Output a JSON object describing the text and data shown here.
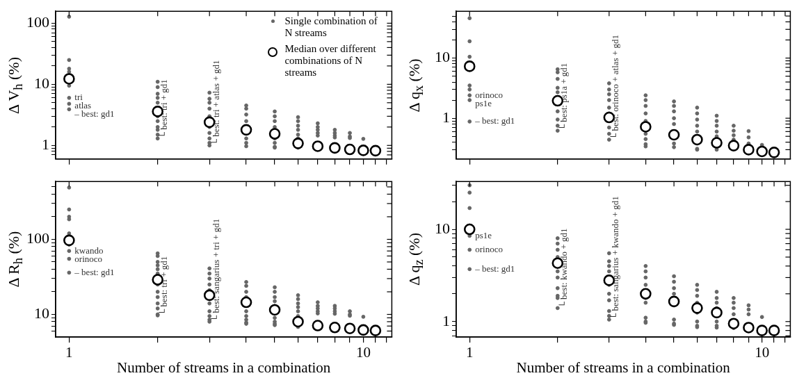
{
  "chart_data": [
    {
      "type": "scatter",
      "ylabel": "Δ V$_{h}$ (%)",
      "log": "xy",
      "grid": false,
      "marker": "circle",
      "legend": "top right",
      "tick_labels": "y",
      "x": [
        1,
        2,
        3,
        4,
        5,
        6,
        7,
        8,
        9,
        10,
        11
      ],
      "xlim": [
        0.9,
        12.5
      ],
      "xticks": [
        {
          "value": 1,
          "label": null
        },
        {
          "value": 2,
          "label": null
        },
        {
          "value": 3,
          "label": null
        },
        {
          "value": 4,
          "label": null
        },
        {
          "value": 5,
          "label": null
        },
        {
          "value": 6,
          "label": null
        },
        {
          "value": 7,
          "label": null
        },
        {
          "value": 8,
          "label": null
        },
        {
          "value": 9,
          "label": null
        },
        {
          "value": 10,
          "label": null
        },
        {
          "value": 11,
          "label": null
        },
        {
          "value": 12,
          "label": null
        }
      ],
      "ylim": [
        0.64,
        157
      ],
      "yticks": [
        {
          "value": 0.7,
          "label": null
        },
        {
          "value": 0.8,
          "label": null
        },
        {
          "value": 0.9,
          "label": null
        },
        1,
        {
          "value": 2,
          "label": null
        },
        {
          "value": 3,
          "label": null
        },
        {
          "value": 4,
          "label": null
        },
        {
          "value": 5,
          "label": null
        },
        {
          "value": 6,
          "label": null
        },
        {
          "value": 7,
          "label": null
        },
        {
          "value": 8,
          "label": null
        },
        {
          "value": 9,
          "label": null
        },
        10,
        {
          "value": 20,
          "label": null
        },
        {
          "value": 30,
          "label": null
        },
        {
          "value": 40,
          "label": null
        },
        {
          "value": 50,
          "label": null
        },
        {
          "value": 60,
          "label": null
        },
        {
          "value": 70,
          "label": null
        },
        {
          "value": 80,
          "label": null
        },
        {
          "value": 90,
          "label": null
        },
        100
      ],
      "series": [
        {
          "name": "Single combination of N streams",
          "color": "#666666",
          "x": [
            1,
            1,
            1,
            1,
            1,
            1,
            1,
            1,
            2,
            2,
            2,
            2,
            2,
            2,
            2,
            2,
            2,
            2,
            2,
            3,
            3,
            3,
            3,
            3,
            3,
            3,
            3,
            3,
            3,
            4,
            4,
            4,
            4,
            4,
            4,
            4,
            5,
            5,
            5,
            5,
            5,
            5,
            5,
            5,
            6,
            6,
            6,
            6,
            6,
            6,
            6,
            7,
            7,
            7,
            7,
            7,
            8,
            8,
            8,
            8,
            9,
            9,
            9,
            10
          ],
          "values": [
            128,
            25,
            18,
            16,
            9.5,
            6,
            4.8,
            3.9,
            11,
            9,
            7,
            6,
            5,
            3,
            2.5,
            2,
            1.8,
            1.5,
            1.3,
            7.3,
            5.8,
            5,
            4,
            3,
            2,
            1.6,
            1.3,
            1.1,
            1.0,
            4.5,
            4,
            3.2,
            2.5,
            1.3,
            1.1,
            0.97,
            3.6,
            3,
            2.5,
            2,
            1.3,
            1.1,
            0.95,
            0.92,
            2.9,
            2.5,
            2.1,
            1.8,
            1.5,
            1.3,
            0.92,
            2.3,
            2.0,
            1.8,
            1.6,
            1.45,
            1.8,
            1.6,
            1.45,
            1.35,
            1.6,
            1.4,
            1.32,
            1.28
          ]
        },
        {
          "name": "Median over different combinations of N streams",
          "color": "#000000",
          "values": [
            12.3,
            3.6,
            2.4,
            1.8,
            1.55,
            1.08,
            0.97,
            0.91,
            0.86,
            0.83,
            0.82
          ]
        }
      ],
      "annotations": [
        {
          "text": "tri",
          "x": 1,
          "y": 6
        },
        {
          "text": "atlas",
          "x": 1,
          "y": 4.8
        },
        {
          "text": "– best: gd1",
          "x": 1,
          "y": 3.9
        },
        {
          "text": "└ best: tri + gd1",
          "x": 2,
          "y": 1.3
        },
        {
          "text": "└ best: tri + atlas + gd1",
          "x": 3,
          "y": 1.0
        }
      ]
    },
    {
      "type": "scatter",
      "ylabel": "Δ q$_{x}$ (%)",
      "log": "xy",
      "grid": false,
      "marker": "circle",
      "tick_labels": "y",
      "x": [
        1,
        2,
        3,
        4,
        5,
        6,
        7,
        8,
        9,
        10,
        11
      ],
      "xlim": [
        0.9,
        12.5
      ],
      "xticks": [
        {
          "value": 1,
          "label": null
        },
        {
          "value": 2,
          "label": null
        },
        {
          "value": 3,
          "label": null
        },
        {
          "value": 4,
          "label": null
        },
        {
          "value": 5,
          "label": null
        },
        {
          "value": 6,
          "label": null
        },
        {
          "value": 7,
          "label": null
        },
        {
          "value": 8,
          "label": null
        },
        {
          "value": 9,
          "label": null
        },
        {
          "value": 10,
          "label": null
        },
        {
          "value": 11,
          "label": null
        },
        {
          "value": 12,
          "label": null
        }
      ],
      "ylim": [
        0.21,
        60
      ],
      "yticks": [
        {
          "value": 0.3,
          "label": null
        },
        {
          "value": 0.4,
          "label": null
        },
        {
          "value": 0.5,
          "label": null
        },
        {
          "value": 0.6,
          "label": null
        },
        {
          "value": 0.7,
          "label": null
        },
        {
          "value": 0.8,
          "label": null
        },
        {
          "value": 0.9,
          "label": null
        },
        1,
        {
          "value": 2,
          "label": null
        },
        {
          "value": 3,
          "label": null
        },
        {
          "value": 4,
          "label": null
        },
        {
          "value": 5,
          "label": null
        },
        {
          "value": 6,
          "label": null
        },
        {
          "value": 7,
          "label": null
        },
        {
          "value": 8,
          "label": null
        },
        {
          "value": 9,
          "label": null
        },
        10,
        {
          "value": 20,
          "label": null
        },
        {
          "value": 30,
          "label": null
        },
        {
          "value": 40,
          "label": null
        },
        {
          "value": 50,
          "label": null
        }
      ],
      "series": [
        {
          "color": "#666666",
          "x": [
            1,
            1,
            1,
            1,
            1,
            1,
            1,
            1,
            2,
            2,
            2,
            2,
            2,
            2,
            2,
            2,
            2,
            3,
            3,
            3,
            3,
            3,
            3,
            3,
            3,
            3,
            4,
            4,
            4,
            4,
            4,
            4,
            4,
            4,
            4,
            5,
            5,
            5,
            5,
            5,
            5,
            5,
            6,
            6,
            6,
            6,
            6,
            6,
            6,
            6,
            7,
            7,
            7,
            7,
            7,
            7,
            7,
            8,
            8,
            8,
            8,
            9,
            9,
            9,
            10,
            10
          ],
          "values": [
            46,
            19,
            10.5,
            3.5,
            3.0,
            2.4,
            2.0,
            0.88,
            6.5,
            5.8,
            4.5,
            3.2,
            2.7,
            1.3,
            0.95,
            0.75,
            0.62,
            3.8,
            3.0,
            2.5,
            2.0,
            1.5,
            1.2,
            0.7,
            0.55,
            0.44,
            2.4,
            2.0,
            1.6,
            1.2,
            0.9,
            0.55,
            0.45,
            0.37,
            0.34,
            1.9,
            1.6,
            1.3,
            1.0,
            0.8,
            0.38,
            0.33,
            1.5,
            1.2,
            0.95,
            0.75,
            0.6,
            0.38,
            0.31,
            0.3,
            1.1,
            0.9,
            0.75,
            0.6,
            0.5,
            0.33,
            0.3,
            0.75,
            0.62,
            0.52,
            0.44,
            0.61,
            0.48,
            0.38,
            0.36,
            0.34
          ]
        },
        {
          "color": "#000000",
          "values": [
            7.3,
            1.95,
            1.03,
            0.72,
            0.53,
            0.44,
            0.39,
            0.35,
            0.3,
            0.28,
            0.27
          ]
        }
      ],
      "annotations": [
        {
          "text": "orinoco",
          "x": 1,
          "y": 2.4
        },
        {
          "text": "ps1e",
          "x": 1,
          "y": 2.0
        },
        {
          "text": "– best: gd1",
          "x": 1,
          "y": 0.88
        },
        {
          "text": "└ best: ps1a + gd1",
          "x": 2,
          "y": 0.62
        },
        {
          "text": "└ best: orinoco + atlas + gd1",
          "x": 3,
          "y": 0.44
        }
      ]
    },
    {
      "type": "scatter",
      "ylabel": "Δ R$_{h}$ (%)",
      "xlabel": "Number of streams in a combination",
      "log": "xy",
      "grid": false,
      "marker": "circle",
      "x": [
        1,
        2,
        3,
        4,
        5,
        6,
        7,
        8,
        9,
        10,
        11
      ],
      "xlim": [
        0.9,
        12.5
      ],
      "xticks": [
        {
          "value": 1,
          "label": "1"
        },
        {
          "value": 2,
          "label": null
        },
        {
          "value": 3,
          "label": null
        },
        {
          "value": 4,
          "label": null
        },
        {
          "value": 5,
          "label": null
        },
        {
          "value": 6,
          "label": null
        },
        {
          "value": 7,
          "label": null
        },
        {
          "value": 8,
          "label": null
        },
        {
          "value": 9,
          "label": null
        },
        10,
        {
          "value": 11,
          "label": null
        },
        {
          "value": 12,
          "label": null
        }
      ],
      "ylim": [
        5,
        590
      ],
      "yticks": [
        {
          "value": 6,
          "label": null
        },
        {
          "value": 7,
          "label": null
        },
        {
          "value": 8,
          "label": null
        },
        {
          "value": 9,
          "label": null
        },
        10,
        {
          "value": 20,
          "label": null
        },
        {
          "value": 30,
          "label": null
        },
        {
          "value": 40,
          "label": null
        },
        {
          "value": 50,
          "label": null
        },
        {
          "value": 60,
          "label": null
        },
        {
          "value": 70,
          "label": null
        },
        {
          "value": 80,
          "label": null
        },
        {
          "value": 90,
          "label": null
        },
        100,
        {
          "value": 200,
          "label": null
        },
        {
          "value": 300,
          "label": null
        },
        {
          "value": 400,
          "label": null
        },
        {
          "value": 500,
          "label": null
        }
      ],
      "series": [
        {
          "color": "#666666",
          "x": [
            1,
            1,
            1,
            1,
            1,
            1,
            1,
            1,
            1,
            2,
            2,
            2,
            2,
            2,
            2,
            2,
            2,
            2,
            2,
            2,
            2,
            2,
            3,
            3,
            3,
            3,
            3,
            3,
            3,
            3,
            3,
            3,
            4,
            4,
            4,
            4,
            4,
            4,
            4,
            4,
            4,
            5,
            5,
            5,
            5,
            5,
            5,
            5,
            5,
            5,
            6,
            6,
            6,
            6,
            6,
            6,
            6,
            7,
            7,
            7,
            7,
            7,
            8,
            8,
            8,
            8,
            9,
            9,
            9,
            10
          ],
          "values": [
            490,
            250,
            200,
            185,
            120,
            85,
            70,
            55,
            36,
            65,
            60,
            50,
            45,
            40,
            35,
            25,
            20,
            17,
            14,
            12,
            10,
            9.7,
            41,
            35,
            30,
            25,
            21,
            14,
            11,
            9.5,
            8.5,
            8,
            27,
            24,
            20,
            17,
            11,
            9.5,
            8.5,
            7.8,
            7.5,
            23,
            20,
            17,
            15,
            13,
            9,
            8,
            7.5,
            7.2,
            18,
            16,
            14,
            12.5,
            11,
            9.5,
            6.8,
            14.5,
            13,
            12,
            11,
            10.3,
            13,
            12,
            11,
            10.2,
            11,
            10,
            9.6,
            9.3
          ]
        },
        {
          "color": "#000000",
          "values": [
            97,
            29,
            18,
            14.5,
            11.5,
            8,
            7.1,
            6.7,
            6.5,
            6.2,
            6.1
          ]
        }
      ],
      "annotations": [
        {
          "text": "kwando",
          "x": 1,
          "y": 70
        },
        {
          "text": "orinoco",
          "x": 1,
          "y": 55
        },
        {
          "text": "– best: gd1",
          "x": 1,
          "y": 36
        },
        {
          "text": "└ best: tri + gd1",
          "x": 2,
          "y": 9.7
        },
        {
          "text": "└ best: sangarius + tri + gd1",
          "x": 3,
          "y": 8
        }
      ]
    },
    {
      "type": "scatter",
      "ylabel": "Δ q$_{z}$ (%)",
      "xlabel": "Number of streams in a combination",
      "log": "xy",
      "grid": false,
      "marker": "circle",
      "x": [
        1,
        2,
        3,
        4,
        5,
        6,
        7,
        8,
        9,
        10,
        11
      ],
      "xlim": [
        0.9,
        12.5
      ],
      "xticks": [
        {
          "value": 1,
          "label": "1"
        },
        {
          "value": 2,
          "label": null
        },
        {
          "value": 3,
          "label": null
        },
        {
          "value": 4,
          "label": null
        },
        {
          "value": 5,
          "label": null
        },
        {
          "value": 6,
          "label": null
        },
        {
          "value": 7,
          "label": null
        },
        {
          "value": 8,
          "label": null
        },
        {
          "value": 9,
          "label": null
        },
        10,
        {
          "value": 11,
          "label": null
        },
        {
          "value": 12,
          "label": null
        }
      ],
      "ylim": [
        0.68,
        33
      ],
      "yticks": [
        {
          "value": 0.7,
          "label": null
        },
        {
          "value": 0.8,
          "label": null
        },
        {
          "value": 0.9,
          "label": null
        },
        1,
        {
          "value": 2,
          "label": null
        },
        {
          "value": 3,
          "label": null
        },
        {
          "value": 4,
          "label": null
        },
        {
          "value": 5,
          "label": null
        },
        {
          "value": 6,
          "label": null
        },
        {
          "value": 7,
          "label": null
        },
        {
          "value": 8,
          "label": null
        },
        {
          "value": 9,
          "label": null
        },
        10,
        {
          "value": 20,
          "label": null
        },
        {
          "value": 30,
          "label": null
        }
      ],
      "series": [
        {
          "color": "#666666",
          "x": [
            1,
            1,
            1,
            1,
            1,
            1,
            1,
            2,
            2,
            2,
            2,
            2,
            2,
            2,
            2,
            2,
            2,
            3,
            3,
            3,
            3,
            3,
            3,
            3,
            3,
            3,
            3,
            4,
            4,
            4,
            4,
            4,
            4,
            4,
            4,
            4,
            5,
            5,
            5,
            5,
            5,
            5,
            5,
            5,
            6,
            6,
            6,
            6,
            6,
            6,
            6,
            6,
            7,
            7,
            7,
            7,
            7,
            7,
            7,
            8,
            8,
            8,
            8,
            8,
            9,
            9,
            9,
            10
          ],
          "values": [
            30,
            25,
            17,
            11,
            8.5,
            6,
            3.7,
            8,
            7,
            6,
            5,
            3.5,
            3,
            2.3,
            1.9,
            1.8,
            1.4,
            5.5,
            4.5,
            4,
            3.5,
            2.5,
            2.0,
            1.7,
            1.3,
            1.15,
            1.05,
            4,
            3.5,
            3,
            2.5,
            1.8,
            1.6,
            1.1,
            1.0,
            0.97,
            3.1,
            2.7,
            2.3,
            2,
            1.5,
            1.05,
            0.95,
            0.92,
            2.5,
            2.2,
            1.9,
            1.6,
            1.25,
            1.0,
            0.9,
            0.87,
            2.1,
            1.8,
            1.6,
            1.4,
            1.0,
            0.9,
            0.86,
            1.8,
            1.6,
            1.4,
            1.2,
            0.85,
            1.5,
            1.35,
            1.2,
            1.12
          ]
        },
        {
          "color": "#000000",
          "values": [
            10,
            4.3,
            2.8,
            2.0,
            1.65,
            1.4,
            1.25,
            0.95,
            0.86,
            0.8,
            0.8
          ]
        }
      ],
      "annotations": [
        {
          "text": "ps1e",
          "x": 1,
          "y": 8.5
        },
        {
          "text": "orinoco",
          "x": 1,
          "y": 6
        },
        {
          "text": "– best: gd1",
          "x": 1,
          "y": 3.7
        },
        {
          "text": "└ best: kwando + gd1",
          "x": 2,
          "y": 1.4
        },
        {
          "text": "└ best: sangarius + kwando + gd1",
          "x": 3,
          "y": 1.05
        }
      ]
    }
  ]
}
